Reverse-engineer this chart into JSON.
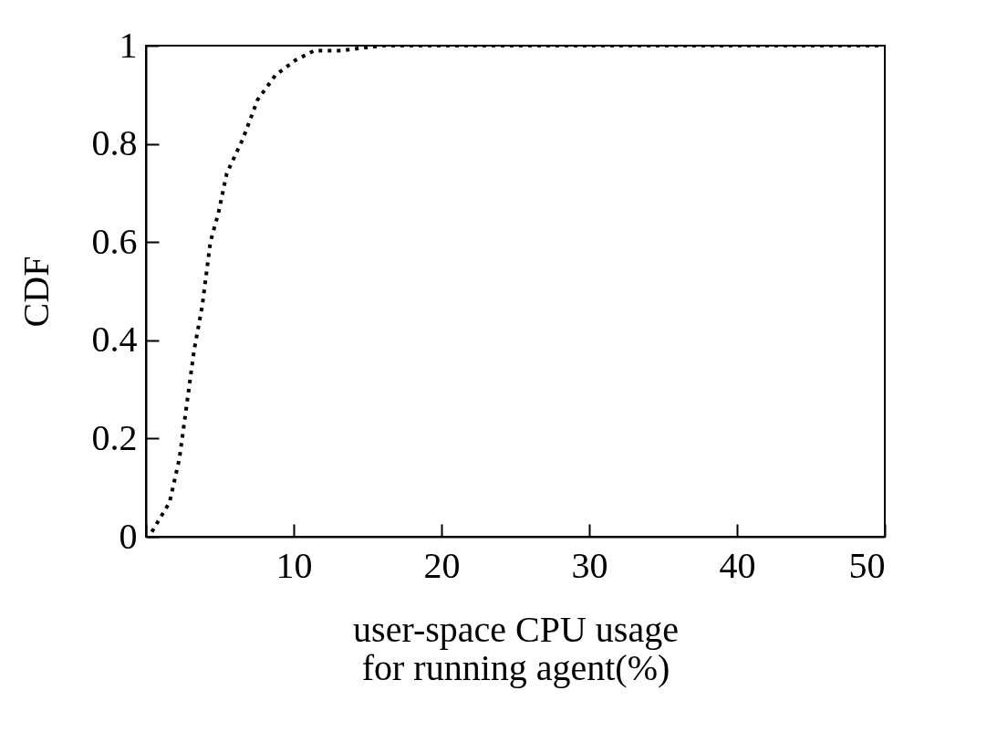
{
  "chart_data": {
    "type": "line",
    "xlabel": "user-space CPU usage for running agent(%)",
    "ylabel": "CDF",
    "x": [
      0.4,
      1.6,
      2.27,
      2.72,
      3.26,
      3.81,
      4.36,
      4.91,
      5.47,
      6.56,
      7.56,
      8.77,
      10.1,
      11.4,
      13.2,
      16,
      50
    ],
    "series": [
      {
        "color": "#000000",
        "values": [
          0.01,
          0.07,
          0.16,
          0.26,
          0.38,
          0.47,
          0.6,
          0.66,
          0.74,
          0.81,
          0.89,
          0.94,
          0.97,
          0.99,
          0.99,
          1.0,
          1.0
        ]
      }
    ],
    "xlim": [
      0,
      50
    ],
    "ylim": [
      0,
      1
    ],
    "xticks": [
      {
        "value": 0,
        "label": null
      },
      10,
      20,
      30,
      40,
      50
    ],
    "yticks": [
      0,
      0.2,
      0.4,
      0.6,
      0.8,
      1
    ],
    "line_style": "dotted",
    "marker": "none",
    "grid": false
  }
}
